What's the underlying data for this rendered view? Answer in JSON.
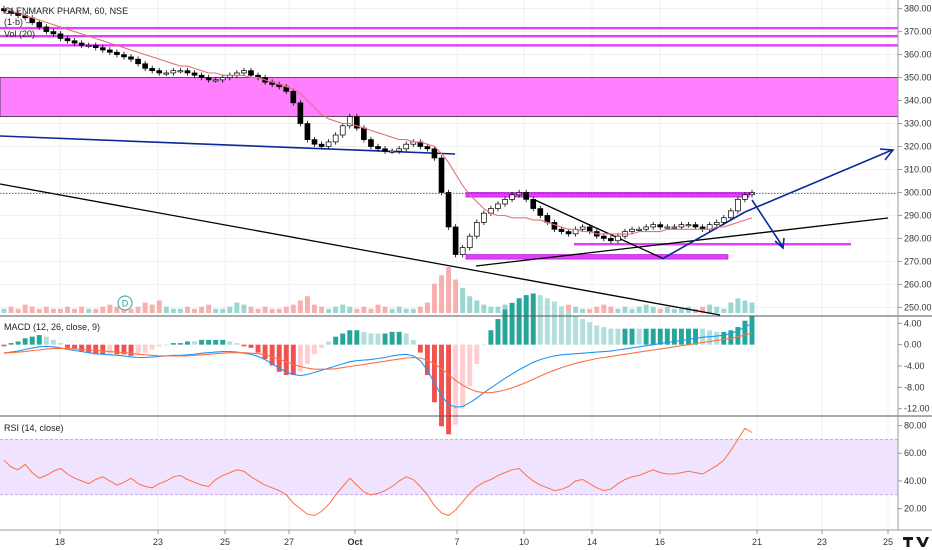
{
  "header": {
    "symbol": "GLENMARK PHARM",
    "interval": "60",
    "exchange": "NSE",
    "title_sep1": ", ",
    "title_sep2": ", ",
    "ohlc_fragment": "(1·b) —",
    "volume_label": "Vol (20)"
  },
  "colors": {
    "up": "#26a69a",
    "down": "#ef5350",
    "candle_body": "#000000",
    "ma": "#e57373",
    "resistance": "#e040fb",
    "zone_fill": "#ff80ff",
    "trend_blue": "#0a2a9a",
    "trend_black": "#000000",
    "macd_line": "#2196f3",
    "signal_line": "#ff7043",
    "rsi_line": "#ff7043",
    "rsi_band": "#e9d8ff"
  },
  "x_axis": {
    "ticks": [
      "18",
      "23",
      "25",
      "27",
      "Oct",
      "7",
      "10",
      "14",
      "16",
      "21",
      "23",
      "25"
    ]
  },
  "price_axis": {
    "ticks": [
      "380.00",
      "370.00",
      "360.00",
      "350.00",
      "340.00",
      "330.00",
      "320.00",
      "310.00",
      "300.00",
      "290.00",
      "280.00",
      "270.00",
      "260.00",
      "250.00"
    ],
    "ylim": [
      248,
      382
    ]
  },
  "macd": {
    "label": "MACD (12, 26, close, 9)",
    "ticks": [
      "4.00",
      "0.00",
      "-4.00",
      "-8.00",
      "-12.00"
    ],
    "ylim": [
      -13,
      5
    ]
  },
  "rsi": {
    "label": "RSI (14, close)",
    "ticks": [
      "80.00",
      "60.00",
      "40.00",
      "20.00"
    ],
    "ylim": [
      6,
      84
    ],
    "upper_band": 70,
    "lower_band": 30
  },
  "events": {
    "dividend_marker": "D"
  },
  "chart_data": {
    "type": "candlestick",
    "price_levels": {
      "resistance_lines": [
        371.5,
        368,
        364
      ],
      "supply_zone": [
        333,
        350
      ],
      "support_rects": [
        [
          298,
          300
        ],
        [
          271,
          273
        ]
      ],
      "target_line": 277.5,
      "current_price_line": 299.5
    },
    "close_series": [
      379,
      378,
      377,
      376,
      374,
      372,
      370,
      369,
      367,
      366,
      365,
      364,
      364,
      363,
      362,
      361,
      360,
      359,
      358,
      356,
      354,
      353,
      352,
      352,
      353,
      353,
      352,
      351,
      350,
      349,
      349,
      350,
      351,
      352,
      353,
      351,
      350,
      348,
      347,
      346,
      344,
      339,
      330,
      323,
      321,
      320,
      322,
      325,
      329,
      333,
      328,
      323,
      320,
      319,
      318,
      318,
      319,
      321,
      322,
      320,
      319,
      315,
      300,
      285,
      273,
      276,
      281,
      287,
      291,
      293,
      295,
      297,
      299,
      300,
      297,
      293,
      290,
      287,
      284,
      283,
      282,
      284,
      285,
      283,
      281,
      280,
      279,
      281,
      283,
      284,
      284,
      285,
      286,
      285,
      285,
      285,
      286,
      286,
      285,
      284,
      286,
      287,
      289,
      292,
      297,
      299,
      300
    ],
    "ma_series": [
      380,
      379,
      378,
      377,
      376,
      375,
      374,
      373,
      372,
      371,
      370,
      369,
      368,
      367,
      366,
      365,
      364,
      363,
      362,
      361,
      360,
      359,
      358,
      357,
      356,
      355,
      355,
      354,
      353,
      352,
      352,
      351,
      351,
      351,
      351,
      350,
      350,
      349,
      348,
      347,
      346,
      345,
      343,
      340,
      337,
      334,
      332,
      331,
      330,
      330,
      329,
      328,
      327,
      326,
      325,
      324,
      323,
      323,
      322,
      322,
      321,
      320,
      317,
      313,
      308,
      303,
      299,
      296,
      293,
      291,
      290,
      290,
      289,
      289,
      289,
      288,
      288,
      287,
      286,
      285,
      284,
      284,
      283,
      283,
      282,
      282,
      282,
      282,
      282,
      282,
      283,
      283,
      283,
      283,
      284,
      284,
      284,
      284,
      284,
      284,
      284,
      285,
      285,
      286,
      287,
      288,
      289
    ],
    "macd_series": [
      -1.6,
      -1.4,
      -1.2,
      -0.9,
      -0.6,
      -0.4,
      -0.3,
      -0.4,
      -0.6,
      -0.9,
      -1.1,
      -1.3,
      -1.5,
      -1.7,
      -1.8,
      -1.9,
      -2.0,
      -2.1,
      -2.3,
      -2.4,
      -2.4,
      -2.3,
      -2.2,
      -2.1,
      -2.0,
      -2.0,
      -1.9,
      -1.8,
      -1.6,
      -1.5,
      -1.4,
      -1.3,
      -1.3,
      -1.4,
      -1.6,
      -1.8,
      -2.2,
      -2.8,
      -3.6,
      -4.4,
      -5.1,
      -5.6,
      -5.8,
      -5.6,
      -5.2,
      -4.8,
      -4.4,
      -4.0,
      -3.6,
      -3.2,
      -3.0,
      -2.9,
      -2.8,
      -2.6,
      -2.4,
      -2.1,
      -1.9,
      -1.8,
      -2.1,
      -3.0,
      -4.8,
      -7.2,
      -9.6,
      -11.2,
      -11.7,
      -11.6,
      -10.9,
      -10.0,
      -9.0,
      -8.1,
      -7.2,
      -6.3,
      -5.5,
      -4.7,
      -4.0,
      -3.3,
      -2.8,
      -2.4,
      -2.1,
      -1.9,
      -1.8,
      -1.7,
      -1.6,
      -1.5,
      -1.4,
      -1.3,
      -1.2,
      -1.0,
      -0.8,
      -0.6,
      -0.4,
      -0.2,
      0.0,
      0.2,
      0.4,
      0.6,
      0.8,
      1.0,
      1.2,
      1.4,
      1.5,
      1.6,
      1.8,
      2.1,
      2.6,
      3.3,
      4.0
    ],
    "signal_series": [
      -1.5,
      -1.5,
      -1.4,
      -1.3,
      -1.1,
      -1.0,
      -0.8,
      -0.7,
      -0.7,
      -0.7,
      -0.8,
      -0.9,
      -1.0,
      -1.1,
      -1.2,
      -1.3,
      -1.4,
      -1.5,
      -1.6,
      -1.8,
      -1.9,
      -2.0,
      -2.1,
      -2.1,
      -2.1,
      -2.1,
      -2.1,
      -2.0,
      -1.9,
      -1.8,
      -1.7,
      -1.6,
      -1.5,
      -1.5,
      -1.5,
      -1.6,
      -1.7,
      -1.9,
      -2.3,
      -2.7,
      -3.2,
      -3.7,
      -4.1,
      -4.4,
      -4.6,
      -4.6,
      -4.6,
      -4.5,
      -4.3,
      -4.1,
      -3.9,
      -3.7,
      -3.5,
      -3.3,
      -3.1,
      -2.9,
      -2.7,
      -2.5,
      -2.4,
      -2.5,
      -2.9,
      -3.6,
      -4.5,
      -5.6,
      -6.7,
      -7.6,
      -8.3,
      -8.8,
      -9.0,
      -9.0,
      -8.8,
      -8.5,
      -8.1,
      -7.6,
      -7.1,
      -6.5,
      -5.9,
      -5.3,
      -4.8,
      -4.3,
      -3.9,
      -3.5,
      -3.2,
      -2.9,
      -2.6,
      -2.4,
      -2.2,
      -2.0,
      -1.8,
      -1.6,
      -1.4,
      -1.2,
      -1.0,
      -0.8,
      -0.6,
      -0.4,
      -0.2,
      0.0,
      0.2,
      0.4,
      0.6,
      0.8,
      1.0,
      1.2,
      1.5,
      1.8,
      2.2
    ],
    "rsi_series": [
      55,
      50,
      48,
      52,
      46,
      42,
      44,
      47,
      49,
      45,
      42,
      40,
      38,
      41,
      43,
      40,
      37,
      39,
      42,
      38,
      36,
      35,
      38,
      40,
      43,
      44,
      41,
      39,
      37,
      36,
      41,
      44,
      46,
      48,
      47,
      43,
      40,
      37,
      35,
      33,
      30,
      24,
      20,
      16,
      15,
      18,
      23,
      30,
      36,
      42,
      37,
      32,
      30,
      31,
      33,
      36,
      40,
      43,
      41,
      36,
      30,
      22,
      17,
      15,
      19,
      25,
      31,
      36,
      39,
      41,
      44,
      46,
      48,
      49,
      44,
      40,
      37,
      35,
      33,
      34,
      36,
      40,
      41,
      38,
      35,
      33,
      34,
      38,
      41,
      43,
      44,
      46,
      48,
      46,
      45,
      45,
      46,
      47,
      46,
      45,
      48,
      51,
      55,
      62,
      70,
      78,
      75
    ],
    "volume_series": [
      2,
      3,
      2,
      4,
      3,
      2,
      3,
      2,
      2,
      3,
      2,
      3,
      2,
      2,
      3,
      4,
      3,
      2,
      2,
      3,
      5,
      4,
      6,
      3,
      2,
      2,
      3,
      2,
      3,
      4,
      2,
      2,
      3,
      5,
      4,
      3,
      2,
      3,
      2,
      2,
      3,
      4,
      6,
      8,
      4,
      3,
      2,
      3,
      4,
      3,
      2,
      3,
      2,
      4,
      3,
      2,
      3,
      2,
      2,
      3,
      5,
      14,
      18,
      22,
      16,
      12,
      8,
      6,
      4,
      3,
      3,
      4,
      5,
      6,
      5,
      4,
      3,
      3,
      2,
      3,
      4,
      3,
      2,
      2,
      3,
      4,
      3,
      2,
      3,
      2,
      3,
      4,
      3,
      2,
      3,
      2,
      2,
      3,
      2,
      3,
      4,
      3,
      2,
      5,
      7,
      6,
      5
    ]
  }
}
